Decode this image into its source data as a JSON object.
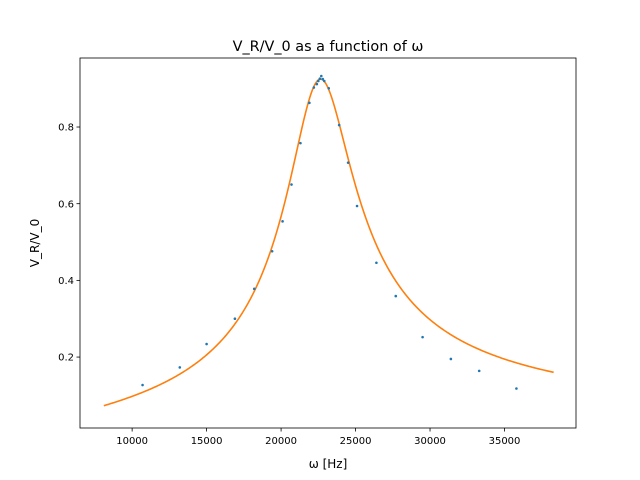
{
  "chart_data": {
    "type": "scatter",
    "title": "V_R/V_0 as a function of ω",
    "xlabel": "ω [Hz]",
    "ylabel": "V_R/V_0",
    "xlim": [
      6500,
      39800
    ],
    "ylim": [
      0.015,
      0.98
    ],
    "xticks": [
      10000,
      15000,
      20000,
      25000,
      30000,
      35000
    ],
    "yticks": [
      0.2,
      0.4,
      0.6,
      0.8
    ],
    "grid": false,
    "series": [
      {
        "kind": "points",
        "color": "#1f77b4",
        "points": [
          [
            10700,
            0.127
          ],
          [
            13200,
            0.173
          ],
          [
            15000,
            0.234
          ],
          [
            16900,
            0.3
          ],
          [
            18200,
            0.378
          ],
          [
            19400,
            0.476
          ],
          [
            20100,
            0.554
          ],
          [
            20700,
            0.65
          ],
          [
            21300,
            0.758
          ],
          [
            21900,
            0.863
          ],
          [
            22200,
            0.903
          ],
          [
            22400,
            0.912
          ],
          [
            22500,
            0.92
          ],
          [
            22600,
            0.926
          ],
          [
            22700,
            0.933
          ],
          [
            22800,
            0.925
          ],
          [
            22900,
            0.92
          ],
          [
            23200,
            0.901
          ],
          [
            23900,
            0.805
          ],
          [
            24500,
            0.707
          ],
          [
            25100,
            0.594
          ],
          [
            26400,
            0.446
          ],
          [
            27700,
            0.359
          ],
          [
            29500,
            0.252
          ],
          [
            31400,
            0.195
          ],
          [
            33300,
            0.164
          ],
          [
            35800,
            0.118
          ]
        ]
      },
      {
        "kind": "fit-line",
        "color": "#ff7f0e",
        "curve": {
          "peak": 0.925,
          "center": 22650,
          "q": 5.17
        },
        "x_range": [
          8100,
          38300
        ]
      }
    ]
  }
}
